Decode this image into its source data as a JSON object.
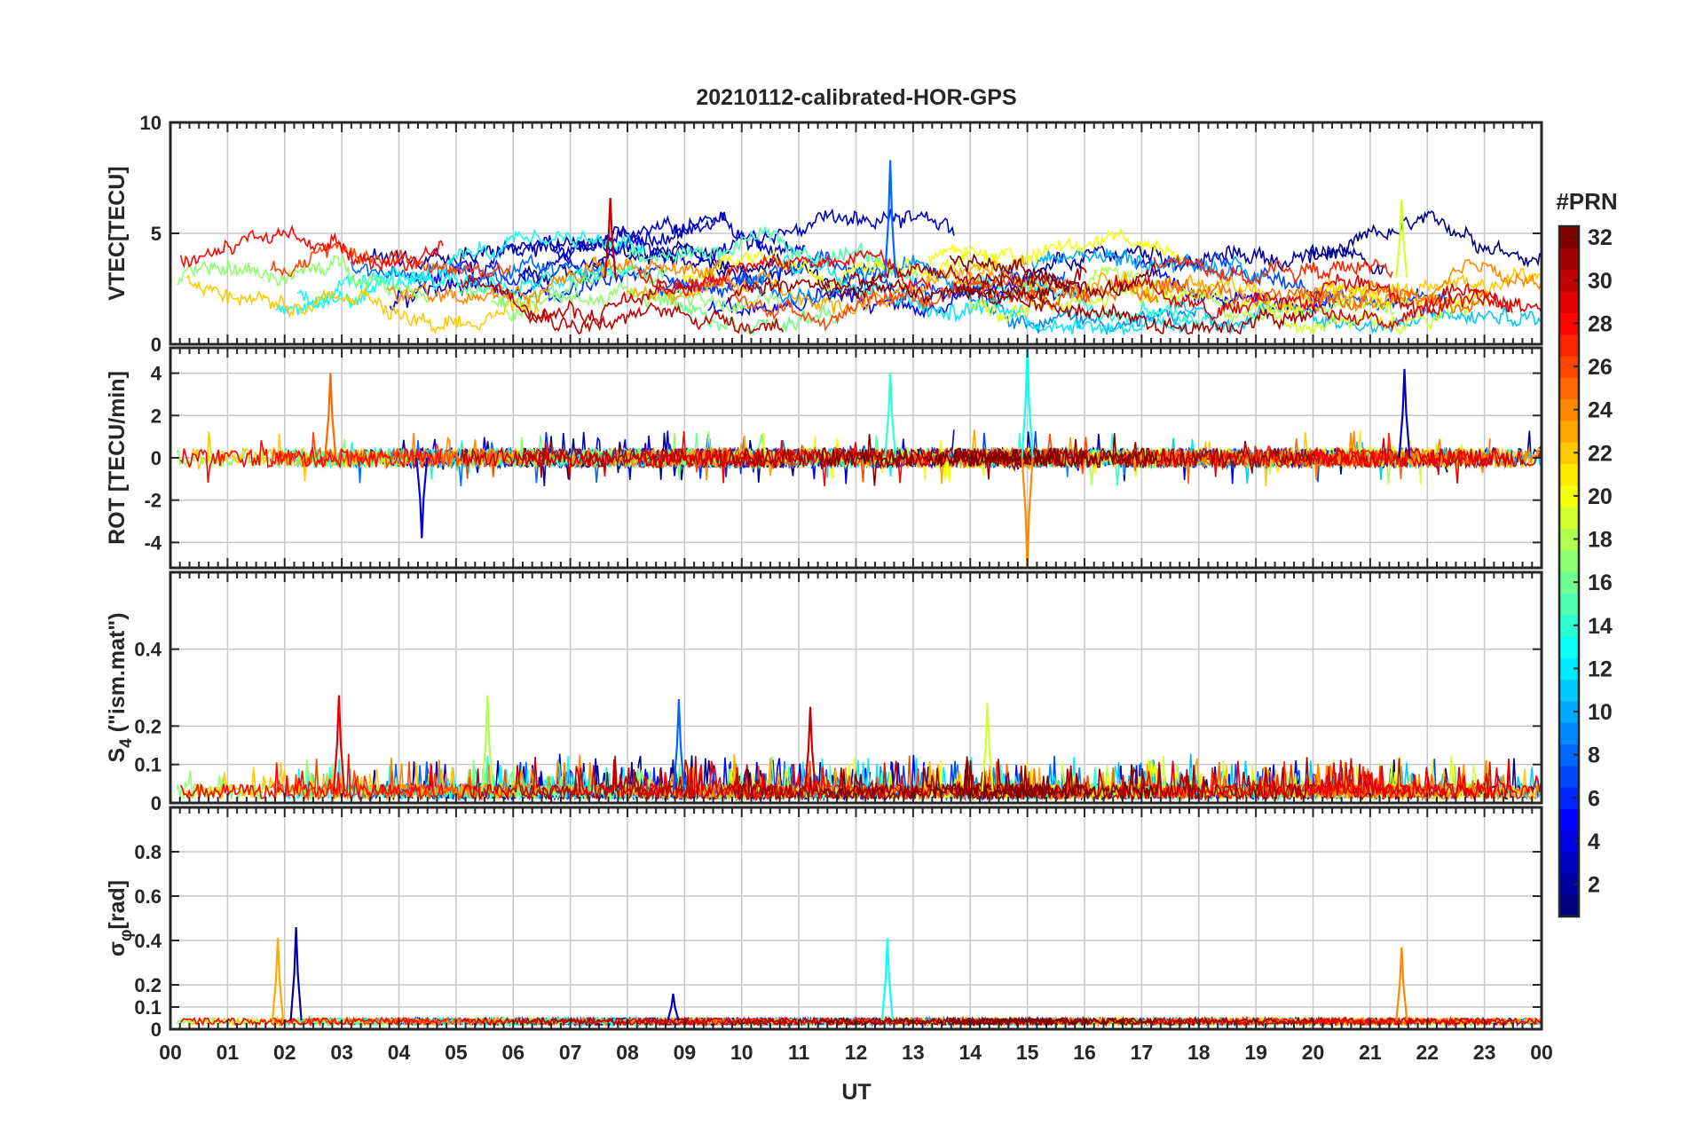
{
  "chart_data": {
    "type": "line",
    "title": "20210112-calibrated-HOR-GPS",
    "xlabel": "UT",
    "x_tick_labels": [
      "00",
      "01",
      "02",
      "03",
      "04",
      "05",
      "06",
      "07",
      "08",
      "09",
      "10",
      "11",
      "12",
      "13",
      "14",
      "15",
      "16",
      "17",
      "18",
      "19",
      "20",
      "21",
      "22",
      "23",
      "00"
    ],
    "xlim": [
      0,
      24
    ],
    "grid": true,
    "panels": [
      {
        "id": "vtec",
        "ylabel": "VTEC[TECU]",
        "ylim": [
          0,
          10
        ],
        "y_ticks": [
          0,
          5,
          10
        ],
        "y_tick_labels": [
          "0",
          "5",
          "10"
        ],
        "notable_peaks": [
          {
            "ut": 12.6,
            "value": 8.3
          },
          {
            "ut": 21.55,
            "value": 6.5
          },
          {
            "ut": 7.7,
            "value": 6.6
          }
        ],
        "typical_range": [
          1,
          5
        ]
      },
      {
        "id": "rot",
        "ylabel": "ROT [TECU/min]",
        "ylim": [
          -5.2,
          5.2
        ],
        "y_ticks": [
          -4,
          -2,
          0,
          2,
          4
        ],
        "y_tick_labels": [
          "-4",
          "-2",
          "0",
          "2",
          "4"
        ],
        "notable_peaks": [
          {
            "ut": 15.0,
            "value": 5.2
          },
          {
            "ut": 15.0,
            "value": -5.2
          },
          {
            "ut": 21.6,
            "value": 4.2
          },
          {
            "ut": 12.6,
            "value": 4.0
          },
          {
            "ut": 2.8,
            "value": 4.0
          },
          {
            "ut": 4.4,
            "value": -3.8
          }
        ],
        "typical_range": [
          -0.5,
          0.5
        ]
      },
      {
        "id": "s4",
        "ylabel": "S4 (\"ism.mat\")",
        "ylabel_main": "S",
        "ylabel_sub": "4",
        "ylabel_rest": " (\"ism.mat\")",
        "ylim": [
          0,
          0.6
        ],
        "y_ticks": [
          0,
          0.1,
          0.2,
          0.4
        ],
        "y_tick_labels": [
          "0",
          "0.1",
          "0.2",
          "0.4"
        ],
        "notable_peaks": [
          {
            "ut": 5.55,
            "value": 0.28
          },
          {
            "ut": 2.95,
            "value": 0.28
          },
          {
            "ut": 8.9,
            "value": 0.27
          },
          {
            "ut": 14.3,
            "value": 0.26
          },
          {
            "ut": 11.2,
            "value": 0.25
          }
        ],
        "typical_range": [
          0,
          0.15
        ]
      },
      {
        "id": "sigma_phi",
        "ylabel": "σφ[rad]",
        "ylabel_main": "σ",
        "ylabel_sub": "φ",
        "ylabel_rest": "[rad]",
        "ylim": [
          0,
          1.0
        ],
        "y_ticks": [
          0,
          0.1,
          0.2,
          0.4,
          0.6,
          0.8
        ],
        "y_tick_labels": [
          "0",
          "0.1",
          "0.2",
          "0.4",
          "0.6",
          "0.8"
        ],
        "notable_peaks": [
          {
            "ut": 1.88,
            "value": 0.41
          },
          {
            "ut": 2.2,
            "value": 0.46
          },
          {
            "ut": 12.55,
            "value": 0.41
          },
          {
            "ut": 21.55,
            "value": 0.37
          },
          {
            "ut": 8.8,
            "value": 0.16
          }
        ],
        "typical_range": [
          0.02,
          0.06
        ]
      }
    ],
    "colorbar": {
      "label": "#PRN",
      "range": [
        1,
        32
      ],
      "tick_values": [
        2,
        4,
        6,
        8,
        10,
        12,
        14,
        16,
        18,
        20,
        22,
        24,
        26,
        28,
        30,
        32
      ],
      "tick_labels": [
        "2",
        "4",
        "6",
        "8",
        "10",
        "12",
        "14",
        "16",
        "18",
        "20",
        "22",
        "24",
        "26",
        "28",
        "30",
        "32"
      ],
      "colormap": "jet"
    },
    "series_count": 32,
    "series_names": [
      "PRN 01",
      "PRN 02",
      "PRN 03",
      "PRN 04",
      "PRN 05",
      "PRN 06",
      "PRN 07",
      "PRN 08",
      "PRN 09",
      "PRN 10",
      "PRN 11",
      "PRN 12",
      "PRN 13",
      "PRN 14",
      "PRN 15",
      "PRN 16",
      "PRN 17",
      "PRN 18",
      "PRN 19",
      "PRN 20",
      "PRN 21",
      "PRN 22",
      "PRN 23",
      "PRN 24",
      "PRN 25",
      "PRN 26",
      "PRN 27",
      "PRN 28",
      "PRN 29",
      "PRN 30",
      "PRN 31",
      "PRN 32"
    ]
  },
  "colors": {
    "axis": "#262626",
    "grid": "#c8c8c8",
    "background": "#ffffff"
  }
}
